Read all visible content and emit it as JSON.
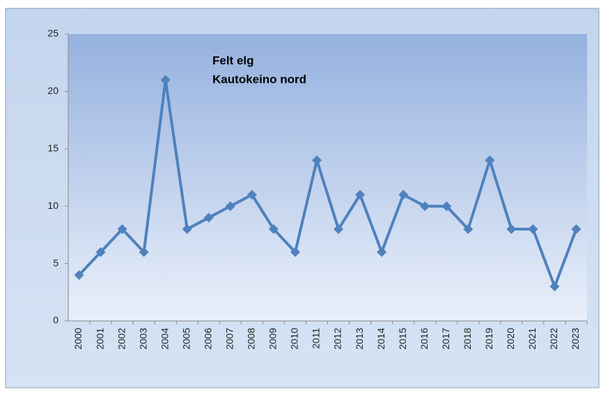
{
  "chart_data": {
    "type": "line",
    "title": "Felt elg",
    "subtitle": "Kautokeino nord",
    "categories": [
      "2000",
      "2001",
      "2002",
      "2003",
      "2004",
      "2005",
      "2006",
      "2007",
      "2008",
      "2009",
      "2010",
      "2011",
      "2012",
      "2013",
      "2014",
      "2015",
      "2016",
      "2017",
      "2018",
      "2019",
      "2020",
      "2021",
      "2022",
      "2023"
    ],
    "values": [
      4,
      6,
      8,
      6,
      21,
      8,
      9,
      10,
      11,
      8,
      6,
      14,
      8,
      11,
      6,
      11,
      10,
      10,
      8,
      14,
      8,
      8,
      3,
      8
    ],
    "color": "#4f81bd",
    "ylim": [
      0,
      25
    ],
    "yticks": [
      0,
      5,
      10,
      15,
      20,
      25
    ],
    "grid": false
  }
}
